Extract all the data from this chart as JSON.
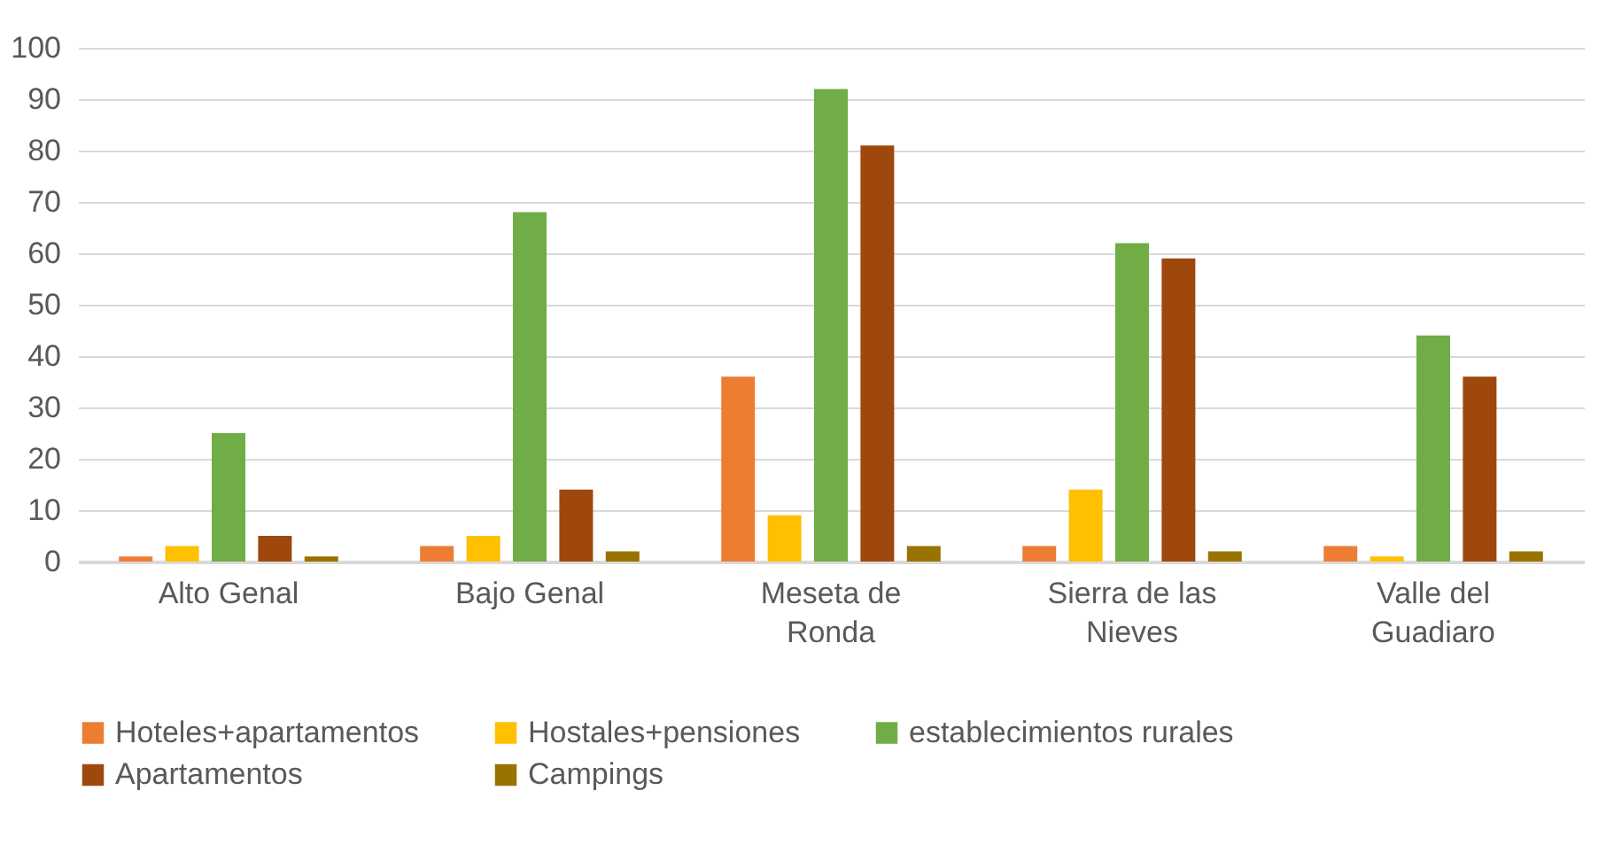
{
  "chart_data": {
    "type": "bar",
    "categories": [
      "Alto Genal",
      "Bajo Genal",
      "Meseta de Ronda",
      "Sierra de las Nieves",
      "Valle del Guadiaro"
    ],
    "series": [
      {
        "name": "Hoteles+apartamentos",
        "color": "#ed7d31",
        "values": [
          1,
          3,
          36,
          3,
          3
        ]
      },
      {
        "name": "Hostales+pensiones",
        "color": "#ffc000",
        "values": [
          3,
          5,
          9,
          14,
          1
        ]
      },
      {
        "name": "establecimientos rurales",
        "color": "#70ad47",
        "values": [
          25,
          68,
          92,
          62,
          44
        ]
      },
      {
        "name": "Apartamentos",
        "color": "#9e480e",
        "values": [
          5,
          14,
          81,
          59,
          36
        ]
      },
      {
        "name": "Campings",
        "color": "#997300",
        "values": [
          1,
          2,
          3,
          2,
          2
        ]
      }
    ],
    "ylim": [
      0,
      100
    ],
    "yticks": [
      0,
      10,
      20,
      30,
      40,
      50,
      60,
      70,
      80,
      90,
      100
    ],
    "grid": "y",
    "legend": "bottom"
  }
}
